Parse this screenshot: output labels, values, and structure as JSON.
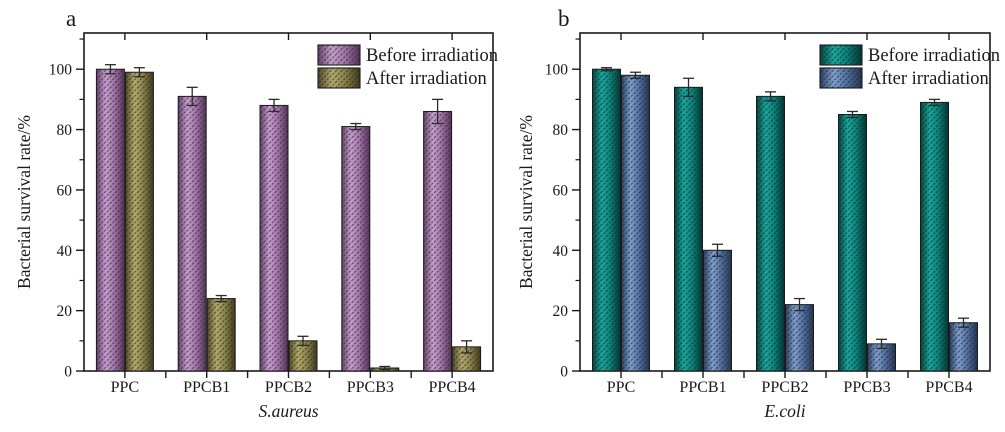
{
  "figure": {
    "background": "#ffffff",
    "axis_color": "#1a1a1a",
    "error_bar_color": "#2a2a2a",
    "bar_outline_color": "#1b1b1b"
  },
  "chart_data": [
    {
      "type": "bar",
      "panel_label": "a",
      "title": "",
      "xlabel": "S.aureus",
      "ylabel": "Bacterial survival rate/%",
      "categories": [
        "PPC",
        "PPCB1",
        "PPCB2",
        "PPCB3",
        "PPCB4"
      ],
      "ylim": [
        0,
        112
      ],
      "yticks": [
        0,
        20,
        40,
        60,
        80,
        100
      ],
      "minor_ytick_step": 10,
      "grid": false,
      "legend_position": "top-right-inside",
      "series": [
        {
          "name": "Before irradiation",
          "values": [
            100,
            91,
            88,
            81,
            86
          ],
          "errors": [
            1.5,
            3,
            2,
            1,
            4
          ],
          "gradient": [
            "#63406a",
            "#c49fca",
            "#a276a9",
            "#533357"
          ],
          "hatch": "#3a2440"
        },
        {
          "name": "After irradiation",
          "values": [
            99,
            24,
            10,
            1,
            8
          ],
          "errors": [
            1.5,
            1,
            1.5,
            0.5,
            2
          ],
          "gradient": [
            "#4e4827",
            "#b3a96e",
            "#8d8350",
            "#3f3a1e"
          ],
          "hatch": "#322d12"
        }
      ]
    },
    {
      "type": "bar",
      "panel_label": "b",
      "title": "",
      "xlabel": "E.coli",
      "ylabel": "Bacterial survival rate/%",
      "categories": [
        "PPC",
        "PPCB1",
        "PPCB2",
        "PPCB3",
        "PPCB4"
      ],
      "ylim": [
        0,
        112
      ],
      "yticks": [
        0,
        20,
        40,
        60,
        80,
        100
      ],
      "minor_ytick_step": 10,
      "grid": false,
      "legend_position": "top-right-inside",
      "series": [
        {
          "name": "Before irradiation",
          "values": [
            100,
            94,
            91,
            85,
            89
          ],
          "errors": [
            0.5,
            3,
            1.5,
            1,
            1
          ],
          "gradient": [
            "#07433f",
            "#1ba49b",
            "#0d837b",
            "#053531"
          ],
          "hatch": "#032f2c"
        },
        {
          "name": "After irradiation",
          "values": [
            98,
            40,
            22,
            9,
            16
          ],
          "errors": [
            1,
            2,
            2,
            1.5,
            1.5
          ],
          "gradient": [
            "#2c3e5e",
            "#7f9fca",
            "#54719f",
            "#24344f"
          ],
          "hatch": "#1b2840"
        }
      ]
    }
  ]
}
